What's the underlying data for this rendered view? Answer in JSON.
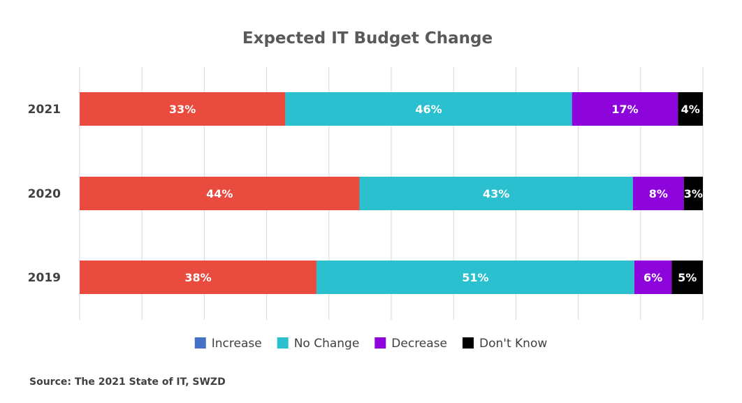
{
  "chart_data": {
    "type": "bar",
    "orientation": "horizontal",
    "stacked": true,
    "title": "Expected IT Budget Change",
    "categories": [
      "2021",
      "2020",
      "2019"
    ],
    "xlim": [
      0,
      100
    ],
    "grid": true,
    "legend_position": "bottom",
    "series": [
      {
        "name": "Increase",
        "values": [
          33,
          44,
          38
        ],
        "labels": [
          "33%",
          "44%",
          "38%"
        ],
        "color": "#E94B3F",
        "legend_color": "#4472C4"
      },
      {
        "name": "No Change",
        "values": [
          46,
          43,
          51
        ],
        "labels": [
          "46%",
          "43%",
          "51%"
        ],
        "color": "#2BC0CF",
        "legend_color": "#2BC0CF"
      },
      {
        "name": "Decrease",
        "values": [
          17,
          8,
          6
        ],
        "labels": [
          "17%",
          "8%",
          "6%"
        ],
        "color": "#8E05DC",
        "legend_color": "#8E05DC"
      },
      {
        "name": "Don't Know",
        "values": [
          4,
          3,
          5
        ],
        "labels": [
          "4%",
          "3%",
          "5%"
        ],
        "color": "#000000",
        "legend_color": "#000000"
      }
    ]
  },
  "source": "Source: The 2021 State of IT, SWZD"
}
